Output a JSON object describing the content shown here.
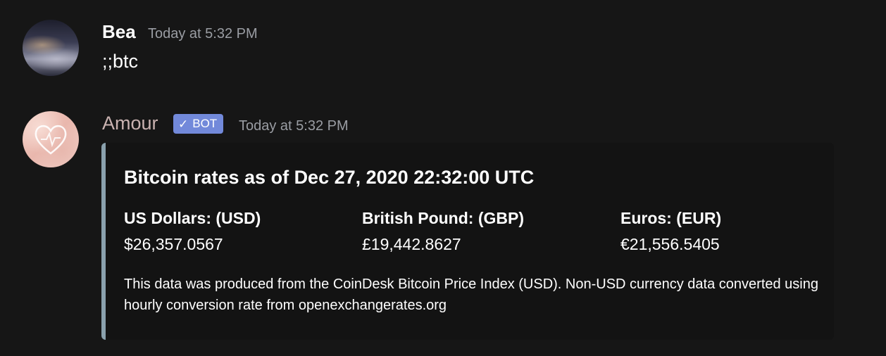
{
  "messages": {
    "bea": {
      "username": "Bea",
      "timestamp": "Today at 5:32 PM",
      "content": ";;btc"
    },
    "amour": {
      "username": "Amour",
      "bot_tag": "BOT",
      "bot_check": "✓",
      "timestamp": "Today at 5:32 PM",
      "embed": {
        "accent_color": "#8aa1ad",
        "title": "Bitcoin rates as of Dec 27, 2020 22:32:00 UTC",
        "fields": [
          {
            "name": "US Dollars: (USD)",
            "value": "$26,357.0567"
          },
          {
            "name": "British Pound: (GBP)",
            "value": "£19,442.8627"
          },
          {
            "name": "Euros: (EUR)",
            "value": "€21,556.5405"
          }
        ],
        "description": "This data was produced from the CoinDesk Bitcoin Price Index (USD). Non-USD currency data converted using hourly conversion rate from openexchangerates.org"
      }
    }
  },
  "colors": {
    "background": "#161616",
    "bot_tag": "#7289da",
    "amour_name": "#c9b2b0",
    "timestamp": "#9a9da3"
  }
}
